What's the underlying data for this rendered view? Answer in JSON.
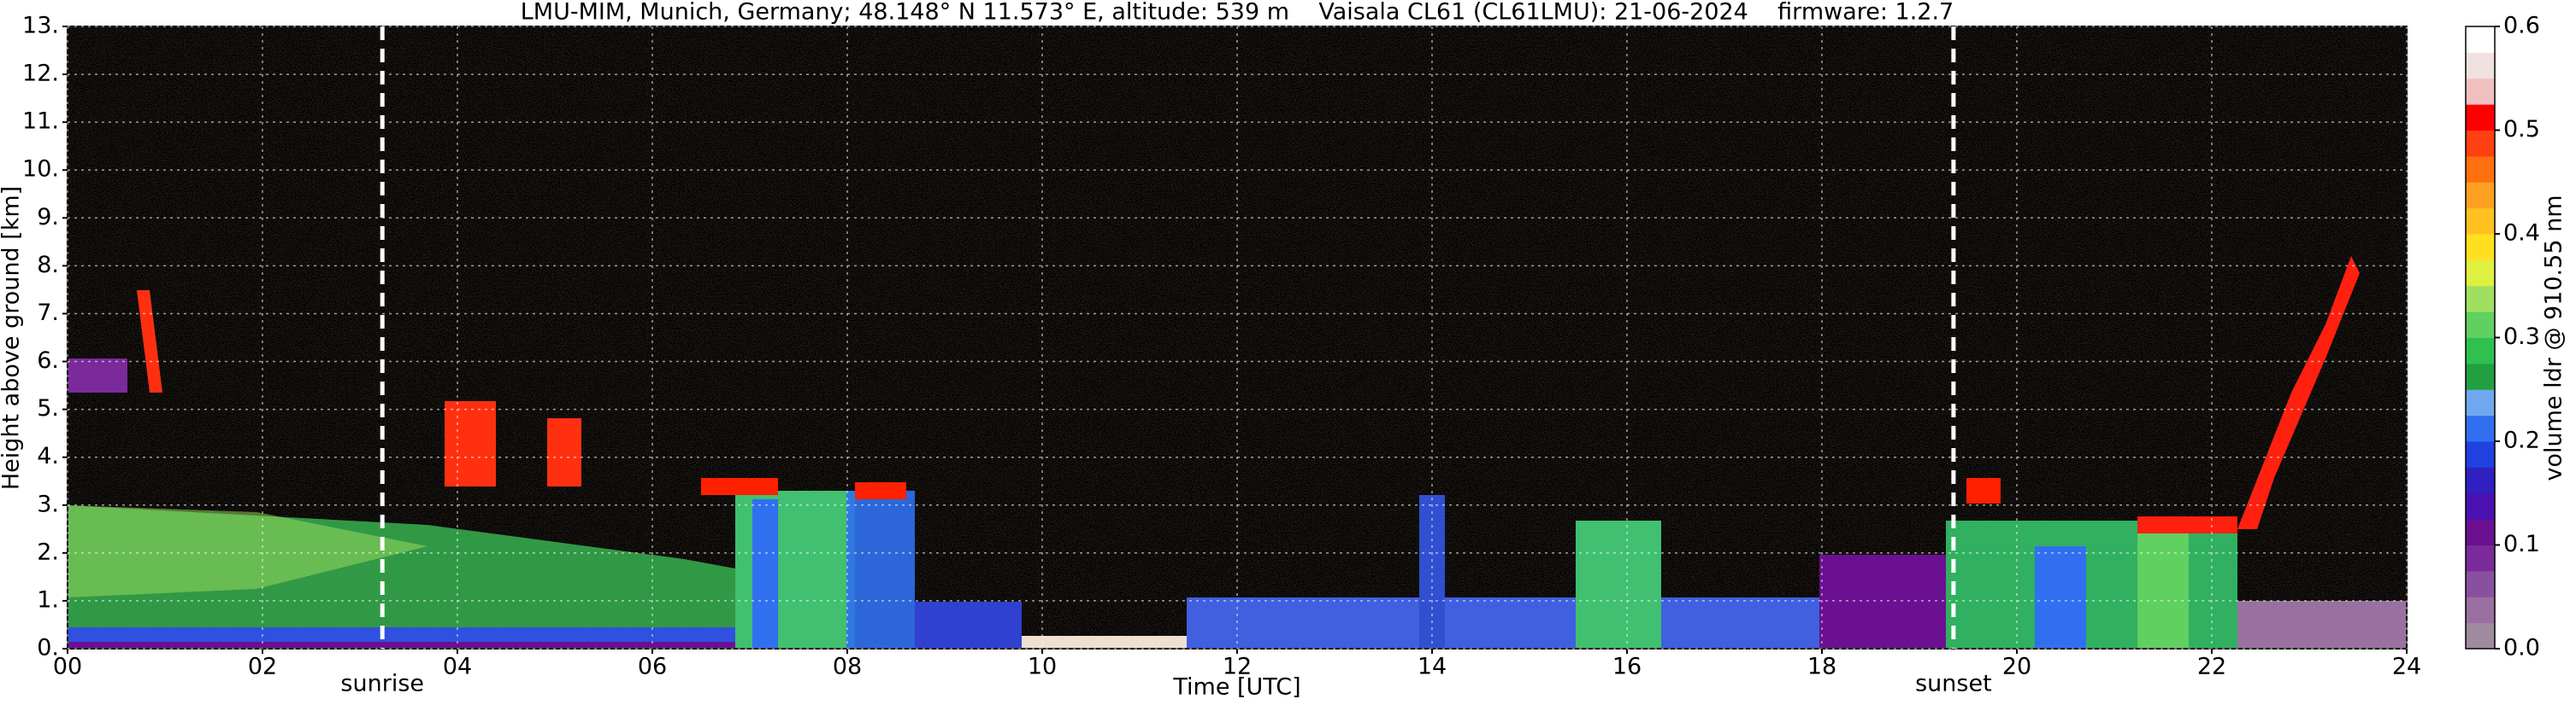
{
  "chart_data": {
    "type": "heatmap",
    "title": "LMU-MIM, Munich, Germany; 48.148° N 11.573° E, altitude: 539 m    Vaisala CL61 (CL61LMU): 21-06-2024    firmware: 1.2.7",
    "x_label": "Time [UTC]",
    "y_label": "Height above ground [km]",
    "xlim": [
      0,
      24
    ],
    "xticks": [
      {
        "value": 0,
        "label": "00"
      },
      {
        "value": 2,
        "label": "02"
      },
      {
        "value": 4,
        "label": "04"
      },
      {
        "value": 6,
        "label": "06"
      },
      {
        "value": 8,
        "label": "08"
      },
      10,
      12,
      14,
      16,
      18,
      20,
      22,
      24
    ],
    "ylim": [
      0,
      13
    ],
    "yticks": [
      {
        "value": 0,
        "label": "0."
      },
      {
        "value": 1,
        "label": "1."
      },
      {
        "value": 2,
        "label": "2."
      },
      {
        "value": 3,
        "label": "3."
      },
      {
        "value": 4,
        "label": "4."
      },
      {
        "value": 5,
        "label": "5."
      },
      {
        "value": 6,
        "label": "6."
      },
      {
        "value": 7,
        "label": "7."
      },
      {
        "value": 8,
        "label": "8."
      },
      {
        "value": 9,
        "label": "9."
      },
      {
        "value": 10,
        "label": "10."
      },
      {
        "value": 11,
        "label": "11."
      },
      {
        "value": 12,
        "label": "12."
      },
      {
        "value": 13,
        "label": "13."
      }
    ],
    "grid": true,
    "annotations": [
      {
        "text": "sunrise",
        "x": 3.23
      },
      {
        "text": "sunset",
        "x": 19.35
      }
    ],
    "colorbar": {
      "label": "volume ldr @ 910.55 nm",
      "lim": [
        0,
        0.6
      ],
      "ticks": [
        {
          "value": 0,
          "label": "0.0"
        },
        0.1,
        0.2,
        0.3,
        0.4,
        0.5,
        0.6
      ],
      "colors": [
        "#a08aa0",
        "#9a70a0",
        "#8a50a0",
        "#7a2a9a",
        "#6a1090",
        "#4a10b0",
        "#3020c0",
        "#2040e0",
        "#3070f0",
        "#70a8f0",
        "#20a040",
        "#30c050",
        "#60d060",
        "#a0e060",
        "#e0f040",
        "#ffe020",
        "#ffc020",
        "#ffa020",
        "#ff7010",
        "#ff4010",
        "#ff0000",
        "#f0c0c0",
        "#f0e0e0",
        "#ffffff"
      ]
    }
  }
}
